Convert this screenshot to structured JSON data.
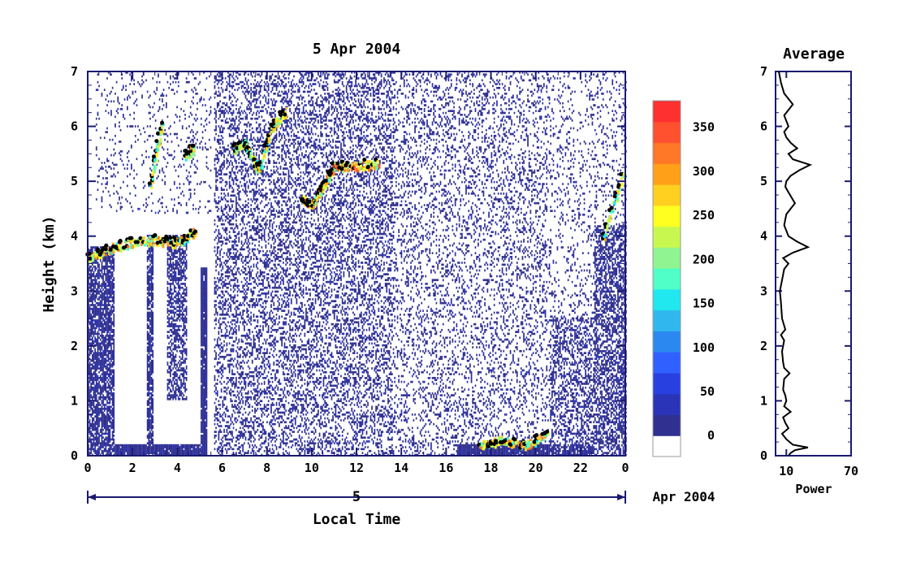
{
  "chart_data": [
    {
      "type": "heatmap",
      "title": "5 Apr 2004",
      "xlabel": "Local Time",
      "ylabel": "Height (km)",
      "xlim": [
        0,
        24
      ],
      "ylim": [
        0,
        7
      ],
      "x_ticks": [
        "0",
        "2",
        "4",
        "6",
        "8",
        "10",
        "12",
        "14",
        "16",
        "18",
        "20",
        "22",
        "0"
      ],
      "y_ticks": [
        "0",
        "1",
        "2",
        "3",
        "4",
        "5",
        "6",
        "7"
      ],
      "date_axis": {
        "day_label": "5",
        "month_label": "Apr 2004"
      },
      "colorbar": {
        "min": 0,
        "max": 380,
        "tick_labels": [
          "0",
          "50",
          "100",
          "150",
          "200",
          "250",
          "300",
          "350"
        ],
        "tick_values": [
          0,
          50,
          100,
          150,
          200,
          250,
          300,
          350
        ],
        "colors": [
          "#ffffff",
          "#303090",
          "#2a34b8",
          "#2840e0",
          "#3060ff",
          "#2a88f0",
          "#30b8ee",
          "#20e8ee",
          "#50ffc8",
          "#90f490",
          "#c8f850",
          "#ffff20",
          "#ffd020",
          "#ffa018",
          "#ff7828",
          "#ff5030",
          "#ff3030"
        ]
      },
      "features": [
        {
          "name": "layer",
          "x": [
            0.0,
            1.0,
            2.0,
            3.0,
            4.0,
            4.8
          ],
          "y": [
            3.6,
            3.8,
            3.9,
            3.95,
            3.9,
            4.1
          ],
          "level": 340
        },
        {
          "name": "cloud",
          "x": [
            2.8,
            3.3
          ],
          "y": [
            5.0,
            6.1
          ],
          "level": 300
        },
        {
          "name": "cloud",
          "x": [
            4.3,
            4.7
          ],
          "y": [
            5.5,
            5.6
          ],
          "level": 320
        },
        {
          "name": "layer",
          "x": [
            6.5,
            7.0,
            7.6,
            8.2,
            8.8
          ],
          "y": [
            5.6,
            5.7,
            5.2,
            6.0,
            6.3
          ],
          "level": 300
        },
        {
          "name": "layer",
          "x": [
            9.5,
            10.0,
            10.5,
            11.0,
            12.0,
            13.0
          ],
          "y": [
            4.7,
            4.6,
            4.9,
            5.3,
            5.3,
            5.35
          ],
          "level": 360
        },
        {
          "name": "low",
          "x": [
            17.5,
            18.5,
            19.5,
            20.5
          ],
          "y": [
            0.2,
            0.3,
            0.2,
            0.4
          ],
          "level": 340
        },
        {
          "name": "cloud",
          "x": [
            23.0,
            23.9
          ],
          "y": [
            4.0,
            5.2
          ],
          "level": 300
        }
      ]
    },
    {
      "type": "line",
      "title": "Average",
      "xlabel": "Power",
      "x_ticks": [
        "10",
        "70"
      ],
      "y_ticks": [
        "0",
        "1",
        "2",
        "3",
        "4",
        "5",
        "6",
        "7"
      ],
      "xlim": [
        0,
        70
      ],
      "ylim": [
        0,
        7
      ],
      "series": [
        {
          "y": [
            0.0,
            0.05,
            0.1,
            0.15,
            0.2,
            0.3,
            0.4,
            0.5,
            0.6,
            0.7,
            0.8,
            0.9,
            1.0,
            1.1,
            1.2,
            1.4,
            1.5,
            1.6,
            1.7,
            1.9,
            2.1,
            2.2,
            2.3,
            2.5,
            2.8,
            3.0,
            3.2,
            3.4,
            3.5,
            3.6,
            3.7,
            3.8,
            3.9,
            4.0,
            4.2,
            4.4,
            4.5,
            4.6,
            4.8,
            4.9,
            5.0,
            5.1,
            5.2,
            5.3,
            5.4,
            5.5,
            5.6,
            5.7,
            5.8,
            5.9,
            6.0,
            6.2,
            6.4,
            6.6,
            6.8,
            7.0
          ],
          "x": [
            12,
            14,
            18,
            30,
            16,
            10,
            6,
            12,
            9,
            7,
            14,
            8,
            10,
            9,
            7,
            8,
            13,
            8,
            7,
            6,
            8,
            5,
            9,
            6,
            5,
            4,
            6,
            8,
            12,
            7,
            16,
            30,
            20,
            12,
            8,
            10,
            14,
            18,
            12,
            9,
            10,
            14,
            22,
            32,
            16,
            12,
            20,
            14,
            10,
            8,
            12,
            8,
            16,
            8,
            5,
            3
          ]
        }
      ]
    }
  ]
}
